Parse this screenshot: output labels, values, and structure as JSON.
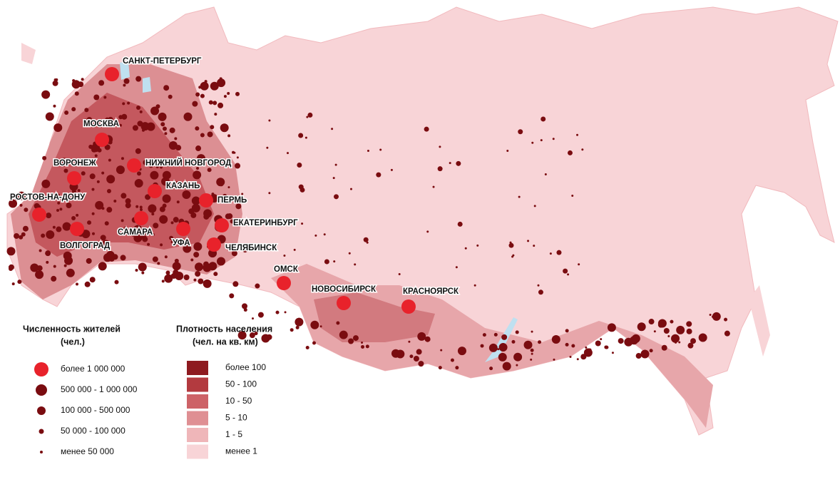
{
  "cities": [
    {
      "label": "САНКТ-ПЕТЕРБУРГ"
    },
    {
      "label": "МОСКВА"
    },
    {
      "label": "ВОРОНЕЖ"
    },
    {
      "label": "НИЖНИЙ НОВГОРОД"
    },
    {
      "label": "КАЗАНЬ"
    },
    {
      "label": "ПЕРМЬ"
    },
    {
      "label": "РОСТОВ-НА-ДОНУ"
    },
    {
      "label": "САМАРА"
    },
    {
      "label": "ЕКАТЕРИНБУРГ"
    },
    {
      "label": "ВОЛГОГРАД"
    },
    {
      "label": "УФА"
    },
    {
      "label": "ЧЕЛЯБИНСК"
    },
    {
      "label": "ОМСК"
    },
    {
      "label": "НОВОСИБИРСК"
    },
    {
      "label": "КРАСНОЯРСК"
    }
  ],
  "legend_population": {
    "title": "Численность жителей",
    "subtitle": "(чел.)",
    "items": [
      "более 1 000 000",
      "500 000 - 1 000 000",
      "100 000 - 500 000",
      "50 000 - 100 000",
      "менее 50 000"
    ]
  },
  "legend_density": {
    "title": "Плотность населения",
    "subtitle": "(чел. на кв. км)",
    "items": [
      "более 100",
      "50 - 100",
      "10 - 50",
      "5 - 10",
      "1 - 5",
      "менее 1"
    ]
  }
}
